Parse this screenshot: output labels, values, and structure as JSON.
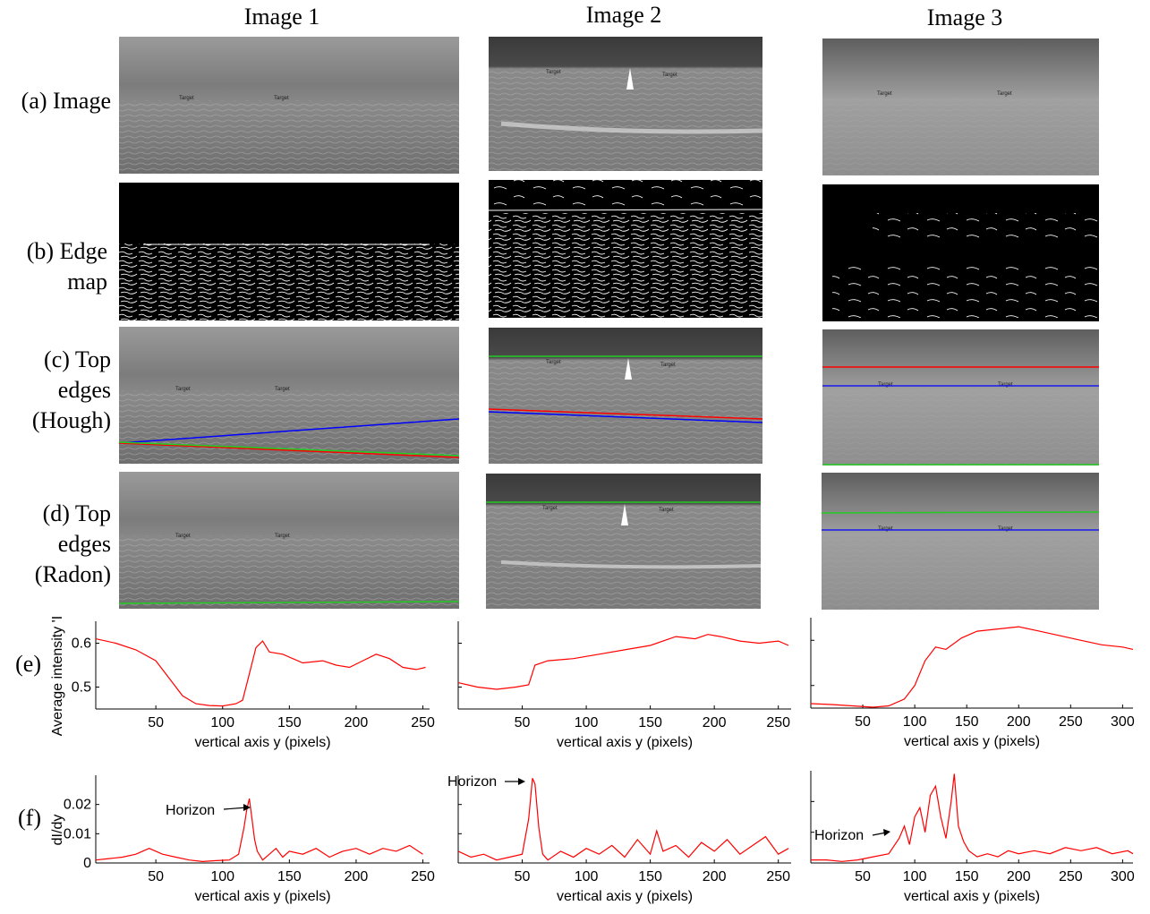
{
  "columns": [
    "Image 1",
    "Image 2",
    "Image 3"
  ],
  "row_labels": {
    "a": [
      "(a) Image"
    ],
    "b": [
      "(b) Edge",
      "map"
    ],
    "c": [
      "(c) Top",
      "edges",
      "(Hough)"
    ],
    "d": [
      "(d) Top",
      "edges",
      "(Radon)"
    ],
    "e": "(e)",
    "f": "(f)"
  },
  "target_label": "Target",
  "horizon_label": "Horizon",
  "colors": {
    "curve": "#ff0000",
    "blue_line": "#0000ff",
    "green_line": "#22cc22",
    "red_line": "#ff0000"
  },
  "chart_data": [
    {
      "id": "e1",
      "type": "line",
      "ylabel": "Average intensity 'I",
      "xlabel": "vertical axis y (pixels)",
      "xlim": [
        5,
        255
      ],
      "ylim": [
        0.45,
        0.65
      ],
      "xticks": [
        50,
        100,
        150,
        200,
        250
      ],
      "yticks": [
        0.5,
        0.6
      ],
      "ytick_labels": [
        "0.5",
        "0.6"
      ],
      "x": [
        5,
        20,
        35,
        50,
        60,
        70,
        80,
        90,
        100,
        110,
        115,
        120,
        125,
        130,
        135,
        145,
        160,
        175,
        185,
        195,
        205,
        215,
        225,
        235,
        245,
        252
      ],
      "y": [
        0.61,
        0.6,
        0.585,
        0.56,
        0.52,
        0.48,
        0.462,
        0.458,
        0.457,
        0.462,
        0.47,
        0.53,
        0.59,
        0.605,
        0.58,
        0.575,
        0.555,
        0.56,
        0.55,
        0.545,
        0.56,
        0.575,
        0.565,
        0.545,
        0.54,
        0.545
      ]
    },
    {
      "id": "e2",
      "type": "line",
      "xlabel": "vertical axis y (pixels)",
      "xlim": [
        0,
        260
      ],
      "ylim": [
        0.45,
        0.65
      ],
      "xticks": [
        50,
        100,
        150,
        200,
        250
      ],
      "yticks": [
        0.5,
        0.6
      ],
      "ytick_labels": [
        "",
        ""
      ],
      "x": [
        0,
        15,
        30,
        45,
        55,
        60,
        70,
        90,
        110,
        130,
        150,
        170,
        185,
        195,
        205,
        220,
        235,
        250,
        258
      ],
      "y": [
        0.51,
        0.5,
        0.495,
        0.5,
        0.505,
        0.55,
        0.56,
        0.565,
        0.575,
        0.585,
        0.595,
        0.615,
        0.61,
        0.62,
        0.615,
        0.605,
        0.6,
        0.605,
        0.595
      ]
    },
    {
      "id": "e3",
      "type": "line",
      "xlabel": "vertical axis y (pixels)",
      "xlim": [
        0,
        310
      ],
      "ylim": [
        0.45,
        0.65
      ],
      "xticks": [
        50,
        100,
        150,
        200,
        250,
        300
      ],
      "yticks": [
        0.5,
        0.6
      ],
      "ytick_labels": [
        "",
        ""
      ],
      "x": [
        0,
        20,
        40,
        60,
        75,
        90,
        100,
        110,
        120,
        130,
        145,
        160,
        180,
        200,
        220,
        240,
        260,
        280,
        300,
        310
      ],
      "y": [
        0.46,
        0.458,
        0.455,
        0.452,
        0.455,
        0.47,
        0.5,
        0.555,
        0.585,
        0.58,
        0.605,
        0.62,
        0.625,
        0.63,
        0.62,
        0.61,
        0.6,
        0.59,
        0.585,
        0.58
      ]
    },
    {
      "id": "f1",
      "type": "line",
      "ylabel": "dI/dy",
      "xlabel": "vertical axis y (pixels)",
      "xlim": [
        5,
        255
      ],
      "ylim": [
        0,
        0.03
      ],
      "xticks": [
        50,
        100,
        150,
        200,
        250
      ],
      "yticks": [
        0,
        0.01,
        0.02
      ],
      "ytick_labels": [
        "0",
        "0.01",
        "0.02"
      ],
      "x": [
        5,
        15,
        25,
        35,
        45,
        55,
        65,
        75,
        85,
        95,
        105,
        112,
        116,
        118,
        120,
        122,
        124,
        126,
        130,
        135,
        140,
        145,
        150,
        160,
        170,
        180,
        190,
        200,
        210,
        220,
        230,
        240,
        250
      ],
      "y": [
        0.001,
        0.0015,
        0.002,
        0.003,
        0.005,
        0.003,
        0.002,
        0.001,
        0.0005,
        0.0008,
        0.001,
        0.003,
        0.012,
        0.018,
        0.022,
        0.015,
        0.008,
        0.004,
        0.001,
        0.003,
        0.005,
        0.002,
        0.004,
        0.003,
        0.005,
        0.002,
        0.004,
        0.005,
        0.003,
        0.005,
        0.004,
        0.006,
        0.003
      ]
    },
    {
      "id": "f2",
      "type": "line",
      "xlabel": "vertical axis y (pixels)",
      "xlim": [
        0,
        260
      ],
      "ylim": [
        0,
        0.03
      ],
      "xticks": [
        50,
        100,
        150,
        200,
        250
      ],
      "yticks": [
        0,
        0.01,
        0.02
      ],
      "ytick_labels": [
        "",
        "",
        ""
      ],
      "x": [
        0,
        10,
        20,
        30,
        40,
        50,
        55,
        58,
        60,
        63,
        66,
        70,
        80,
        90,
        100,
        110,
        120,
        130,
        140,
        150,
        155,
        160,
        170,
        180,
        190,
        200,
        210,
        220,
        230,
        240,
        250,
        258
      ],
      "y": [
        0.004,
        0.002,
        0.003,
        0.001,
        0.002,
        0.003,
        0.015,
        0.029,
        0.027,
        0.012,
        0.003,
        0.001,
        0.004,
        0.002,
        0.005,
        0.003,
        0.006,
        0.002,
        0.008,
        0.003,
        0.011,
        0.004,
        0.006,
        0.002,
        0.007,
        0.004,
        0.008,
        0.003,
        0.006,
        0.009,
        0.003,
        0.005
      ]
    },
    {
      "id": "f3",
      "type": "line",
      "xlabel": "vertical axis y (pixels)",
      "xlim": [
        0,
        310
      ],
      "ylim": [
        0,
        0.03
      ],
      "xticks": [
        50,
        100,
        150,
        200,
        250,
        300
      ],
      "yticks": [
        0,
        0.01,
        0.02
      ],
      "ytick_labels": [
        "",
        "",
        ""
      ],
      "x": [
        0,
        15,
        30,
        45,
        60,
        75,
        85,
        90,
        95,
        100,
        105,
        110,
        115,
        120,
        125,
        130,
        135,
        138,
        142,
        147,
        152,
        160,
        170,
        180,
        190,
        200,
        215,
        230,
        245,
        260,
        275,
        290,
        305,
        310
      ],
      "y": [
        0.001,
        0.001,
        0.0005,
        0.001,
        0.002,
        0.003,
        0.008,
        0.012,
        0.006,
        0.015,
        0.018,
        0.01,
        0.022,
        0.025,
        0.015,
        0.008,
        0.02,
        0.029,
        0.012,
        0.007,
        0.004,
        0.002,
        0.003,
        0.002,
        0.004,
        0.003,
        0.004,
        0.003,
        0.005,
        0.004,
        0.005,
        0.003,
        0.004,
        0.003
      ]
    }
  ]
}
